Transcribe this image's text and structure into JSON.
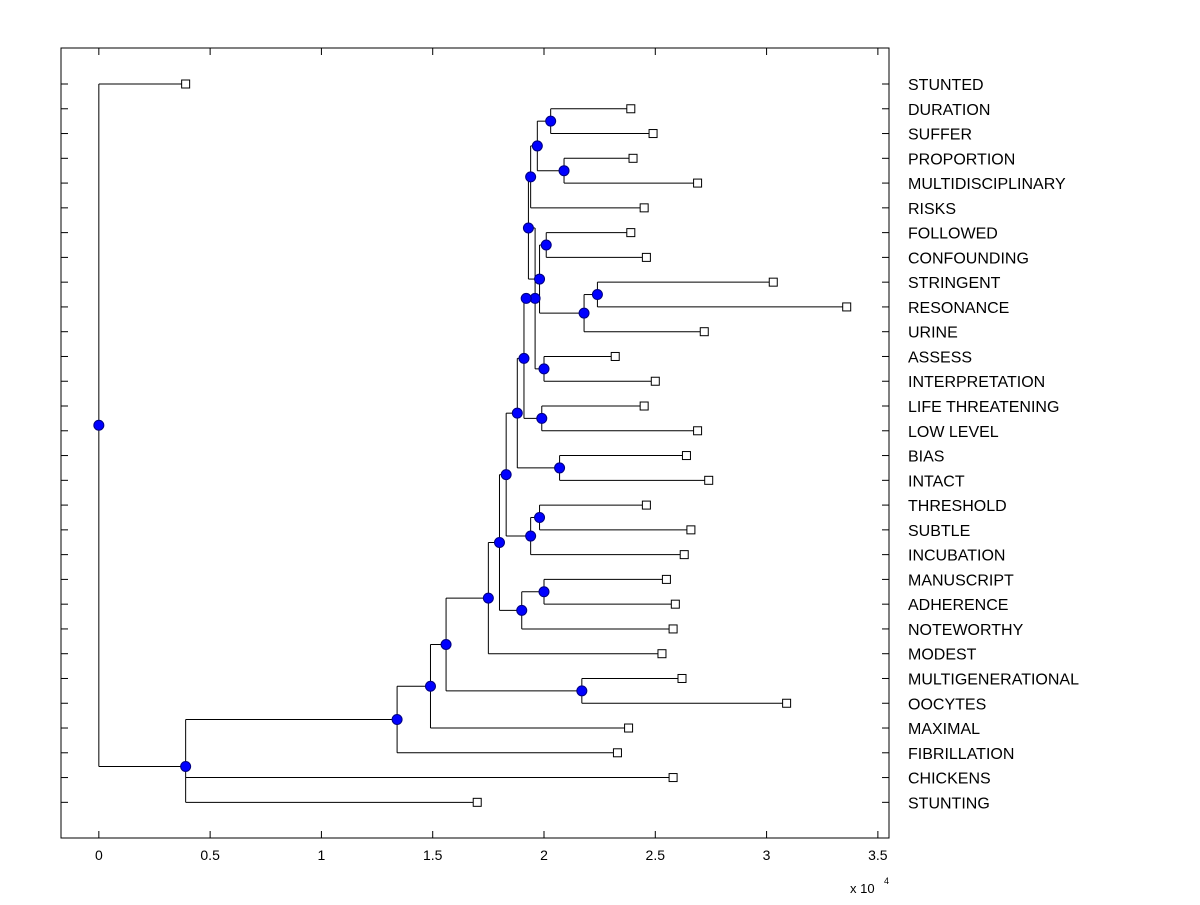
{
  "chart_data": {
    "type": "dendrogram",
    "orientation": "horizontal",
    "x_axis": {
      "ticks": [
        0,
        0.5,
        1,
        1.5,
        2,
        2.5,
        3,
        3.5
      ],
      "tick_labels": [
        "0",
        "0.5",
        "1",
        "1.5",
        "2",
        "2.5",
        "3",
        "3.5"
      ],
      "xlim": [
        -0.17,
        3.55
      ],
      "multiplier_label": "x 10",
      "multiplier_exponent": "4"
    },
    "leaves": [
      {
        "label": "STUNTED",
        "value": 0.39
      },
      {
        "label": "DURATION",
        "value": 2.39
      },
      {
        "label": "SUFFER",
        "value": 2.49
      },
      {
        "label": "PROPORTION",
        "value": 2.4
      },
      {
        "label": "MULTIDISCIPLINARY",
        "value": 2.69
      },
      {
        "label": "RISKS",
        "value": 2.45
      },
      {
        "label": "FOLLOWED",
        "value": 2.39
      },
      {
        "label": "CONFOUNDING",
        "value": 2.46
      },
      {
        "label": "STRINGENT",
        "value": 3.03
      },
      {
        "label": "RESONANCE",
        "value": 3.36
      },
      {
        "label": "URINE",
        "value": 2.72
      },
      {
        "label": "ASSESS",
        "value": 2.32
      },
      {
        "label": "INTERPRETATION",
        "value": 2.5
      },
      {
        "label": "LIFE THREATENING",
        "value": 2.45
      },
      {
        "label": "LOW LEVEL",
        "value": 2.69
      },
      {
        "label": "BIAS",
        "value": 2.64
      },
      {
        "label": "INTACT",
        "value": 2.74
      },
      {
        "label": "THRESHOLD",
        "value": 2.46
      },
      {
        "label": "SUBTLE",
        "value": 2.66
      },
      {
        "label": "INCUBATION",
        "value": 2.63
      },
      {
        "label": "MANUSCRIPT",
        "value": 2.55
      },
      {
        "label": "ADHERENCE",
        "value": 2.59
      },
      {
        "label": "NOTEWORTHY",
        "value": 2.58
      },
      {
        "label": "MODEST",
        "value": 2.53
      },
      {
        "label": "MULTIGENERATIONAL",
        "value": 2.62
      },
      {
        "label": "OOCYTES",
        "value": 3.09
      },
      {
        "label": "MAXIMAL",
        "value": 2.38
      },
      {
        "label": "FIBRILLATION",
        "value": 2.33
      },
      {
        "label": "CHICKENS",
        "value": 2.58
      },
      {
        "label": "STUNTING",
        "value": 1.7
      }
    ],
    "nodes": [
      {
        "id": "n1",
        "value": 2.03,
        "children": [
          "l1",
          "l2"
        ]
      },
      {
        "id": "n2",
        "value": 2.09,
        "children": [
          "l3",
          "l4"
        ]
      },
      {
        "id": "n3",
        "value": 1.97,
        "children": [
          "n1",
          "n2"
        ]
      },
      {
        "id": "n4",
        "value": 1.94,
        "children": [
          "n3",
          "l5"
        ]
      },
      {
        "id": "n5",
        "value": 2.01,
        "children": [
          "l6",
          "l7"
        ]
      },
      {
        "id": "n6",
        "value": 2.24,
        "children": [
          "l8",
          "l9"
        ]
      },
      {
        "id": "n7",
        "value": 2.18,
        "children": [
          "n6",
          "l10"
        ]
      },
      {
        "id": "n8",
        "value": 1.98,
        "children": [
          "n5",
          "n7"
        ]
      },
      {
        "id": "n9",
        "value": 1.93,
        "children": [
          "n4",
          "n8"
        ]
      },
      {
        "id": "n10",
        "value": 2.0,
        "children": [
          "l11",
          "l12"
        ]
      },
      {
        "id": "n11",
        "value": 1.96,
        "children": [
          "n9",
          "n10"
        ]
      },
      {
        "id": "n12",
        "value": 1.92,
        "children": [
          "n11"
        ]
      },
      {
        "id": "n13",
        "value": 1.99,
        "children": [
          "l13",
          "l14"
        ]
      },
      {
        "id": "n14",
        "value": 1.91,
        "children": [
          "n12",
          "n13"
        ]
      },
      {
        "id": "n15",
        "value": 2.07,
        "children": [
          "l15",
          "l16"
        ]
      },
      {
        "id": "n16",
        "value": 1.88,
        "children": [
          "n14",
          "n15"
        ]
      },
      {
        "id": "n17",
        "value": 1.98,
        "children": [
          "l17",
          "l18"
        ]
      },
      {
        "id": "n18",
        "value": 1.94,
        "children": [
          "n17",
          "l19"
        ]
      },
      {
        "id": "n19",
        "value": 1.83,
        "children": [
          "n16",
          "n18"
        ]
      },
      {
        "id": "n20",
        "value": 2.0,
        "children": [
          "l20",
          "l21"
        ]
      },
      {
        "id": "n21",
        "value": 1.9,
        "children": [
          "n20",
          "l22"
        ]
      },
      {
        "id": "n22",
        "value": 1.8,
        "children": [
          "n19",
          "n21"
        ]
      },
      {
        "id": "n23",
        "value": 1.75,
        "children": [
          "n22",
          "l23"
        ]
      },
      {
        "id": "n24",
        "value": 2.17,
        "children": [
          "l24",
          "l25"
        ]
      },
      {
        "id": "n25",
        "value": 1.56,
        "children": [
          "n23",
          "n24"
        ]
      },
      {
        "id": "n26",
        "value": 1.49,
        "children": [
          "n25",
          "l26"
        ]
      },
      {
        "id": "n27",
        "value": 1.34,
        "children": [
          "n26",
          "l27"
        ]
      },
      {
        "id": "n28",
        "value": 0.39,
        "children": [
          "n27",
          "l28",
          "l29"
        ]
      },
      {
        "id": "n29",
        "value": 0.0,
        "children": [
          "l0",
          "n28"
        ]
      }
    ],
    "colors": {
      "node_fill": "#0000ff",
      "node_stroke": "#000080",
      "leaf_fill": "#ffffff",
      "line": "#000000"
    }
  }
}
